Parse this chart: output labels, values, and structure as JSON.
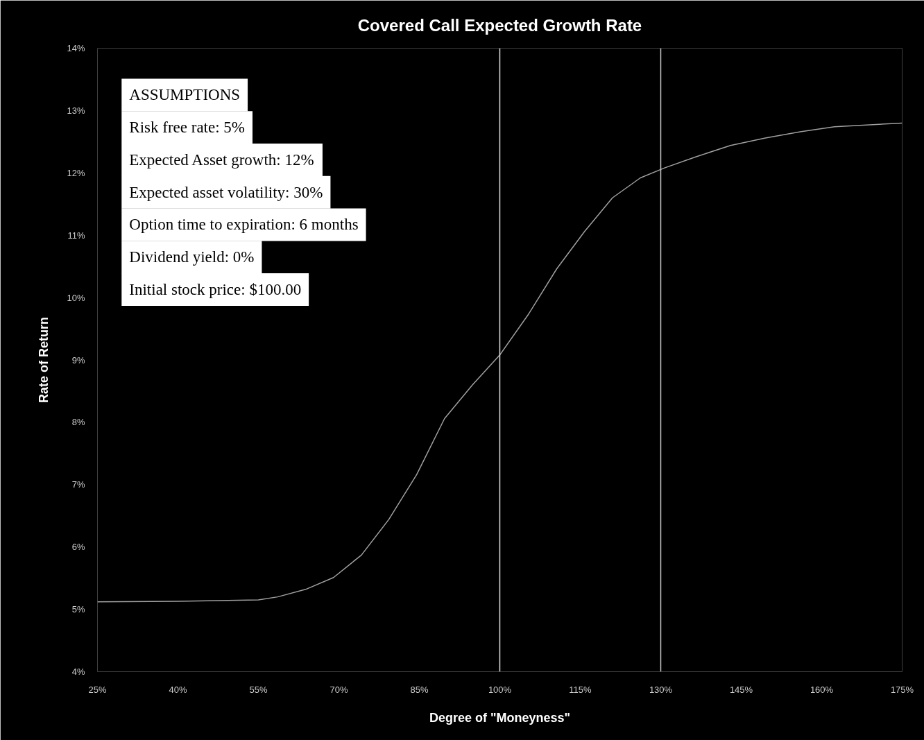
{
  "chart_data": {
    "type": "line",
    "title": "Covered Call Expected Growth Rate",
    "xlabel": "Degree of \"Moneyness\"",
    "ylabel": "Rate of Return",
    "x": [
      25,
      40,
      55,
      58.6,
      63.8,
      69,
      74.2,
      79.3,
      84.5,
      89.7,
      94.9,
      100,
      105.4,
      110.6,
      115.8,
      121,
      126.2,
      130.7,
      136.6,
      143,
      149.5,
      156,
      162.4,
      175
    ],
    "series": [
      {
        "color": "#a0a0a0",
        "values": [
          5.12,
          5.13,
          5.15,
          5.2,
          5.32,
          5.51,
          5.87,
          6.44,
          7.16,
          8.06,
          8.6,
          9.08,
          9.74,
          10.46,
          11.06,
          11.6,
          11.92,
          12.08,
          12.26,
          12.44,
          12.56,
          12.66,
          12.74,
          12.8
        ]
      }
    ],
    "xlim": [
      25,
      175
    ],
    "ylim": [
      4,
      14
    ],
    "xticks": [
      {
        "value": 25,
        "label": "25%"
      },
      {
        "value": 40,
        "label": "40%"
      },
      {
        "value": 55,
        "label": "55%"
      },
      {
        "value": 70,
        "label": "70%"
      },
      {
        "value": 85,
        "label": "85%"
      },
      {
        "value": 100,
        "label": "100%"
      },
      {
        "value": 115,
        "label": "115%"
      },
      {
        "value": 130,
        "label": "130%"
      },
      {
        "value": 145,
        "label": "145%"
      },
      {
        "value": 160,
        "label": "160%"
      },
      {
        "value": 175,
        "label": "175%"
      }
    ],
    "yticks": [
      {
        "value": 4,
        "label": "4%"
      },
      {
        "value": 5,
        "label": "5%"
      },
      {
        "value": 6,
        "label": "6%"
      },
      {
        "value": 7,
        "label": "7%"
      },
      {
        "value": 8,
        "label": "8%"
      },
      {
        "value": 9,
        "label": "9%"
      },
      {
        "value": 10,
        "label": "10%"
      },
      {
        "value": 11,
        "label": "11%"
      },
      {
        "value": 12,
        "label": "12%"
      },
      {
        "value": 13,
        "label": "13%"
      },
      {
        "value": 14,
        "label": "14%"
      }
    ],
    "ref_lines": [
      {
        "axis": "x",
        "value": 100,
        "color": "#e0e0e0"
      },
      {
        "axis": "x",
        "value": 130,
        "color": "#c8c8c8"
      }
    ],
    "annotations": [
      "ASSUMPTIONS",
      "Risk free rate: 5%",
      "Expected Asset growth: 12%",
      "Expected asset volatility: 30%",
      "Option time to expiration: 6 months",
      "Dividend yield: 0%",
      "Initial stock price: $100.00"
    ],
    "grid": false,
    "marker": "none",
    "line_style": "solid"
  }
}
